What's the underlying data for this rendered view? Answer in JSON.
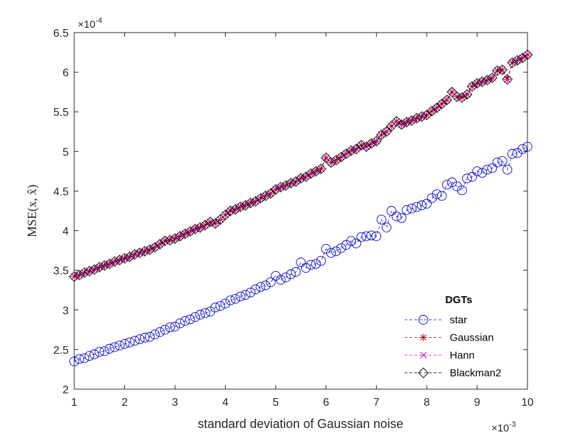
{
  "chart_data": {
    "type": "line",
    "xlabel": "standard deviation of Gaussian noise",
    "ylabel": "MSE(x, x̂)",
    "x_exponent": "×10",
    "x_exponent_power": "-3",
    "y_exponent": "×10",
    "y_exponent_power": "-4",
    "xlim": [
      1,
      10
    ],
    "ylim": [
      2,
      6.5
    ],
    "x_ticks": [
      "1",
      "2",
      "3",
      "4",
      "5",
      "6",
      "7",
      "8",
      "9",
      "10"
    ],
    "y_ticks": [
      "2",
      "2.5",
      "3",
      "3.5",
      "4",
      "4.5",
      "5",
      "5.5",
      "6",
      "6.5"
    ],
    "grid": false,
    "legend": {
      "title": "DGTs",
      "placement": "bottom-right",
      "entries": [
        "star",
        "Gaussian",
        "Hann",
        "Blackman2"
      ]
    },
    "x": [
      1.0,
      1.1,
      1.2,
      1.3,
      1.4,
      1.5,
      1.6,
      1.7,
      1.8,
      1.9,
      2.0,
      2.1,
      2.2,
      2.3,
      2.4,
      2.5,
      2.6,
      2.7,
      2.8,
      2.9,
      3.0,
      3.1,
      3.2,
      3.3,
      3.4,
      3.5,
      3.6,
      3.7,
      3.8,
      3.9,
      4.0,
      4.1,
      4.2,
      4.3,
      4.4,
      4.5,
      4.6,
      4.7,
      4.8,
      4.9,
      5.0,
      5.1,
      5.2,
      5.3,
      5.4,
      5.5,
      5.6,
      5.7,
      5.8,
      5.9,
      6.0,
      6.1,
      6.2,
      6.3,
      6.4,
      6.5,
      6.6,
      6.7,
      6.8,
      6.9,
      7.0,
      7.1,
      7.2,
      7.3,
      7.4,
      7.5,
      7.6,
      7.7,
      7.8,
      7.9,
      8.0,
      8.1,
      8.2,
      8.3,
      8.4,
      8.5,
      8.6,
      8.7,
      8.8,
      8.9,
      9.0,
      9.1,
      9.2,
      9.3,
      9.4,
      9.5,
      9.6,
      9.7,
      9.8,
      9.9,
      10.0
    ],
    "series": [
      {
        "name": "star",
        "color": "#0000cc",
        "marker": "circle",
        "values": [
          2.35,
          2.38,
          2.39,
          2.42,
          2.44,
          2.47,
          2.48,
          2.51,
          2.53,
          2.55,
          2.57,
          2.59,
          2.61,
          2.63,
          2.65,
          2.66,
          2.69,
          2.72,
          2.75,
          2.78,
          2.79,
          2.83,
          2.86,
          2.88,
          2.91,
          2.94,
          2.96,
          2.98,
          3.03,
          3.05,
          3.08,
          3.12,
          3.14,
          3.17,
          3.19,
          3.22,
          3.26,
          3.29,
          3.31,
          3.35,
          3.43,
          3.38,
          3.41,
          3.45,
          3.48,
          3.6,
          3.53,
          3.57,
          3.58,
          3.62,
          3.77,
          3.72,
          3.74,
          3.78,
          3.82,
          3.87,
          3.84,
          3.92,
          3.93,
          3.94,
          3.93,
          4.14,
          4.04,
          4.25,
          4.18,
          4.16,
          4.26,
          4.28,
          4.3,
          4.32,
          4.34,
          4.41,
          4.46,
          4.44,
          4.58,
          4.61,
          4.56,
          4.51,
          4.66,
          4.68,
          4.75,
          4.73,
          4.77,
          4.79,
          4.86,
          4.88,
          4.77,
          4.97,
          4.98,
          5.03,
          5.06
        ]
      },
      {
        "name": "Gaussian",
        "color": "#cc0000",
        "marker": "asterisk",
        "values": [
          3.42,
          3.44,
          3.47,
          3.49,
          3.51,
          3.54,
          3.56,
          3.58,
          3.61,
          3.63,
          3.65,
          3.67,
          3.7,
          3.72,
          3.74,
          3.76,
          3.79,
          3.83,
          3.87,
          3.88,
          3.9,
          3.93,
          3.96,
          3.99,
          4.02,
          4.04,
          4.07,
          4.11,
          4.09,
          4.14,
          4.2,
          4.25,
          4.27,
          4.3,
          4.32,
          4.35,
          4.37,
          4.41,
          4.44,
          4.47,
          4.52,
          4.55,
          4.57,
          4.6,
          4.62,
          4.66,
          4.68,
          4.72,
          4.75,
          4.78,
          4.92,
          4.86,
          4.89,
          4.93,
          4.97,
          5.01,
          5.03,
          5.08,
          5.06,
          5.1,
          5.13,
          5.21,
          5.25,
          5.32,
          5.38,
          5.34,
          5.37,
          5.39,
          5.42,
          5.44,
          5.46,
          5.51,
          5.55,
          5.6,
          5.65,
          5.75,
          5.69,
          5.68,
          5.72,
          5.82,
          5.86,
          5.88,
          5.9,
          5.93,
          6.02,
          6.03,
          5.91,
          6.12,
          6.15,
          6.18,
          6.22
        ]
      },
      {
        "name": "Hann",
        "color": "#cc00cc",
        "marker": "cross",
        "values": [
          3.42,
          3.44,
          3.47,
          3.49,
          3.51,
          3.54,
          3.56,
          3.58,
          3.61,
          3.63,
          3.65,
          3.67,
          3.7,
          3.72,
          3.74,
          3.76,
          3.79,
          3.83,
          3.87,
          3.88,
          3.9,
          3.93,
          3.96,
          3.99,
          4.02,
          4.04,
          4.07,
          4.11,
          4.09,
          4.14,
          4.2,
          4.25,
          4.27,
          4.3,
          4.32,
          4.35,
          4.37,
          4.41,
          4.44,
          4.47,
          4.52,
          4.55,
          4.57,
          4.6,
          4.62,
          4.66,
          4.68,
          4.72,
          4.75,
          4.78,
          4.92,
          4.86,
          4.89,
          4.93,
          4.97,
          5.01,
          5.03,
          5.08,
          5.06,
          5.1,
          5.13,
          5.21,
          5.25,
          5.32,
          5.38,
          5.34,
          5.37,
          5.39,
          5.42,
          5.44,
          5.46,
          5.51,
          5.55,
          5.6,
          5.65,
          5.75,
          5.69,
          5.68,
          5.72,
          5.82,
          5.86,
          5.88,
          5.9,
          5.93,
          6.02,
          6.03,
          5.91,
          6.12,
          6.15,
          6.18,
          6.22
        ]
      },
      {
        "name": "Blackman2",
        "color": "#000000",
        "marker": "diamond",
        "values": [
          3.42,
          3.44,
          3.47,
          3.49,
          3.51,
          3.54,
          3.56,
          3.58,
          3.61,
          3.63,
          3.65,
          3.67,
          3.7,
          3.72,
          3.74,
          3.76,
          3.79,
          3.83,
          3.87,
          3.88,
          3.9,
          3.93,
          3.96,
          3.99,
          4.02,
          4.04,
          4.07,
          4.11,
          4.09,
          4.14,
          4.2,
          4.25,
          4.27,
          4.3,
          4.32,
          4.35,
          4.37,
          4.41,
          4.44,
          4.47,
          4.52,
          4.55,
          4.57,
          4.6,
          4.62,
          4.66,
          4.68,
          4.72,
          4.75,
          4.78,
          4.92,
          4.86,
          4.89,
          4.93,
          4.97,
          5.01,
          5.03,
          5.08,
          5.06,
          5.1,
          5.13,
          5.21,
          5.25,
          5.32,
          5.38,
          5.34,
          5.37,
          5.39,
          5.42,
          5.44,
          5.46,
          5.51,
          5.55,
          5.6,
          5.65,
          5.75,
          5.69,
          5.68,
          5.72,
          5.82,
          5.86,
          5.88,
          5.9,
          5.93,
          6.02,
          6.03,
          5.91,
          6.12,
          6.15,
          6.18,
          6.22
        ]
      }
    ]
  }
}
